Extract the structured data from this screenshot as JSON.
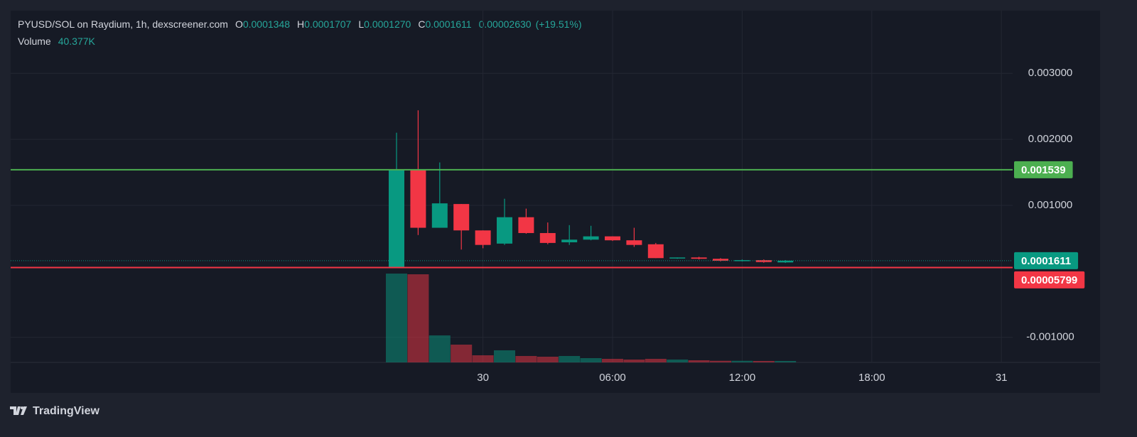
{
  "chart_data": {
    "type": "candlestick",
    "title": "PYUSD/SOL on Raydium, 1h, dexscreener.com",
    "legend": {
      "o": "O",
      "open": "0.0001348",
      "h": "H",
      "high": "0.0001707",
      "l": "L",
      "low": "0.0001270",
      "c": "C",
      "close": "0.0001611",
      "change": "0.00002630",
      "change_pct": "(+19.51%)"
    },
    "volume_label": "Volume",
    "volume_value": "40.377K",
    "categories": [
      null,
      null,
      null,
      null,
      "30",
      null,
      null,
      null,
      null,
      null,
      "06:00",
      null,
      null,
      null,
      null,
      null,
      "12:00",
      null,
      null,
      null,
      null,
      null,
      "18:00",
      null,
      null,
      null,
      null,
      null,
      "31"
    ],
    "open": [
      5.8e-05,
      0.00154,
      0.00066,
      0.00102,
      0.00062,
      0.00042,
      0.00082,
      0.00058,
      0.00044,
      0.00048,
      0.00053,
      0.00047,
      0.00041,
      0.0002,
      0.00021,
      0.00019,
      0.00016,
      0.00017,
      0.0001348,
      null,
      null,
      null,
      null,
      null,
      null,
      null,
      null,
      null,
      null
    ],
    "high": [
      0.0021,
      0.00244,
      0.00165,
      0.00102,
      0.00062,
      0.0011,
      0.00095,
      0.00074,
      0.0007,
      0.00069,
      0.00053,
      0.00066,
      0.00043,
      0.00021,
      0.00022,
      0.0002,
      0.00018,
      0.00018,
      0.0001707,
      null,
      null,
      null,
      null,
      null,
      null,
      null,
      null,
      null,
      null
    ],
    "low": [
      5.8e-05,
      0.00055,
      0.00066,
      0.00033,
      0.00035,
      0.0004,
      0.00057,
      0.00041,
      0.0004,
      0.00047,
      0.00046,
      0.00037,
      0.0002,
      0.00019,
      0.00018,
      0.00015,
      0.00015,
      0.00013,
      0.000127,
      null,
      null,
      null,
      null,
      null,
      null,
      null,
      null,
      null,
      null
    ],
    "close": [
      0.00154,
      0.00066,
      0.00103,
      0.00062,
      0.0004,
      0.00082,
      0.00058,
      0.00043,
      0.00048,
      0.00053,
      0.00047,
      0.0004,
      0.0002,
      0.00021,
      0.00019,
      0.00016,
      0.00017,
      0.00014,
      0.0001611,
      null,
      null,
      null,
      null,
      null,
      null,
      null,
      null,
      null,
      null
    ],
    "volume": [
      2500000,
      2480000,
      760000,
      500000,
      200000,
      340000,
      180000,
      160000,
      180000,
      120000,
      100000,
      80000,
      100000,
      80000,
      60000,
      45000,
      45000,
      40000,
      40377,
      null,
      null,
      null,
      null,
      null,
      null,
      null,
      null,
      null,
      null
    ],
    "up_color": "#089981",
    "down_color": "#f23645",
    "ylim": [
      -0.00138,
      0.00395
    ],
    "yticks": [
      {
        "value": 0.003,
        "label": "0.003000"
      },
      {
        "value": 0.002,
        "label": "0.002000"
      },
      {
        "value": 0.001,
        "label": "0.001000"
      },
      {
        "value": -0.001,
        "label": "-0.001000"
      }
    ],
    "grid": true,
    "price_lines": [
      {
        "value": 0.001539,
        "color": "#4caf50"
      },
      {
        "value": 5.799e-05,
        "color": "#f23645"
      }
    ],
    "last_price_color": "#089981"
  },
  "brand": "TradingView"
}
